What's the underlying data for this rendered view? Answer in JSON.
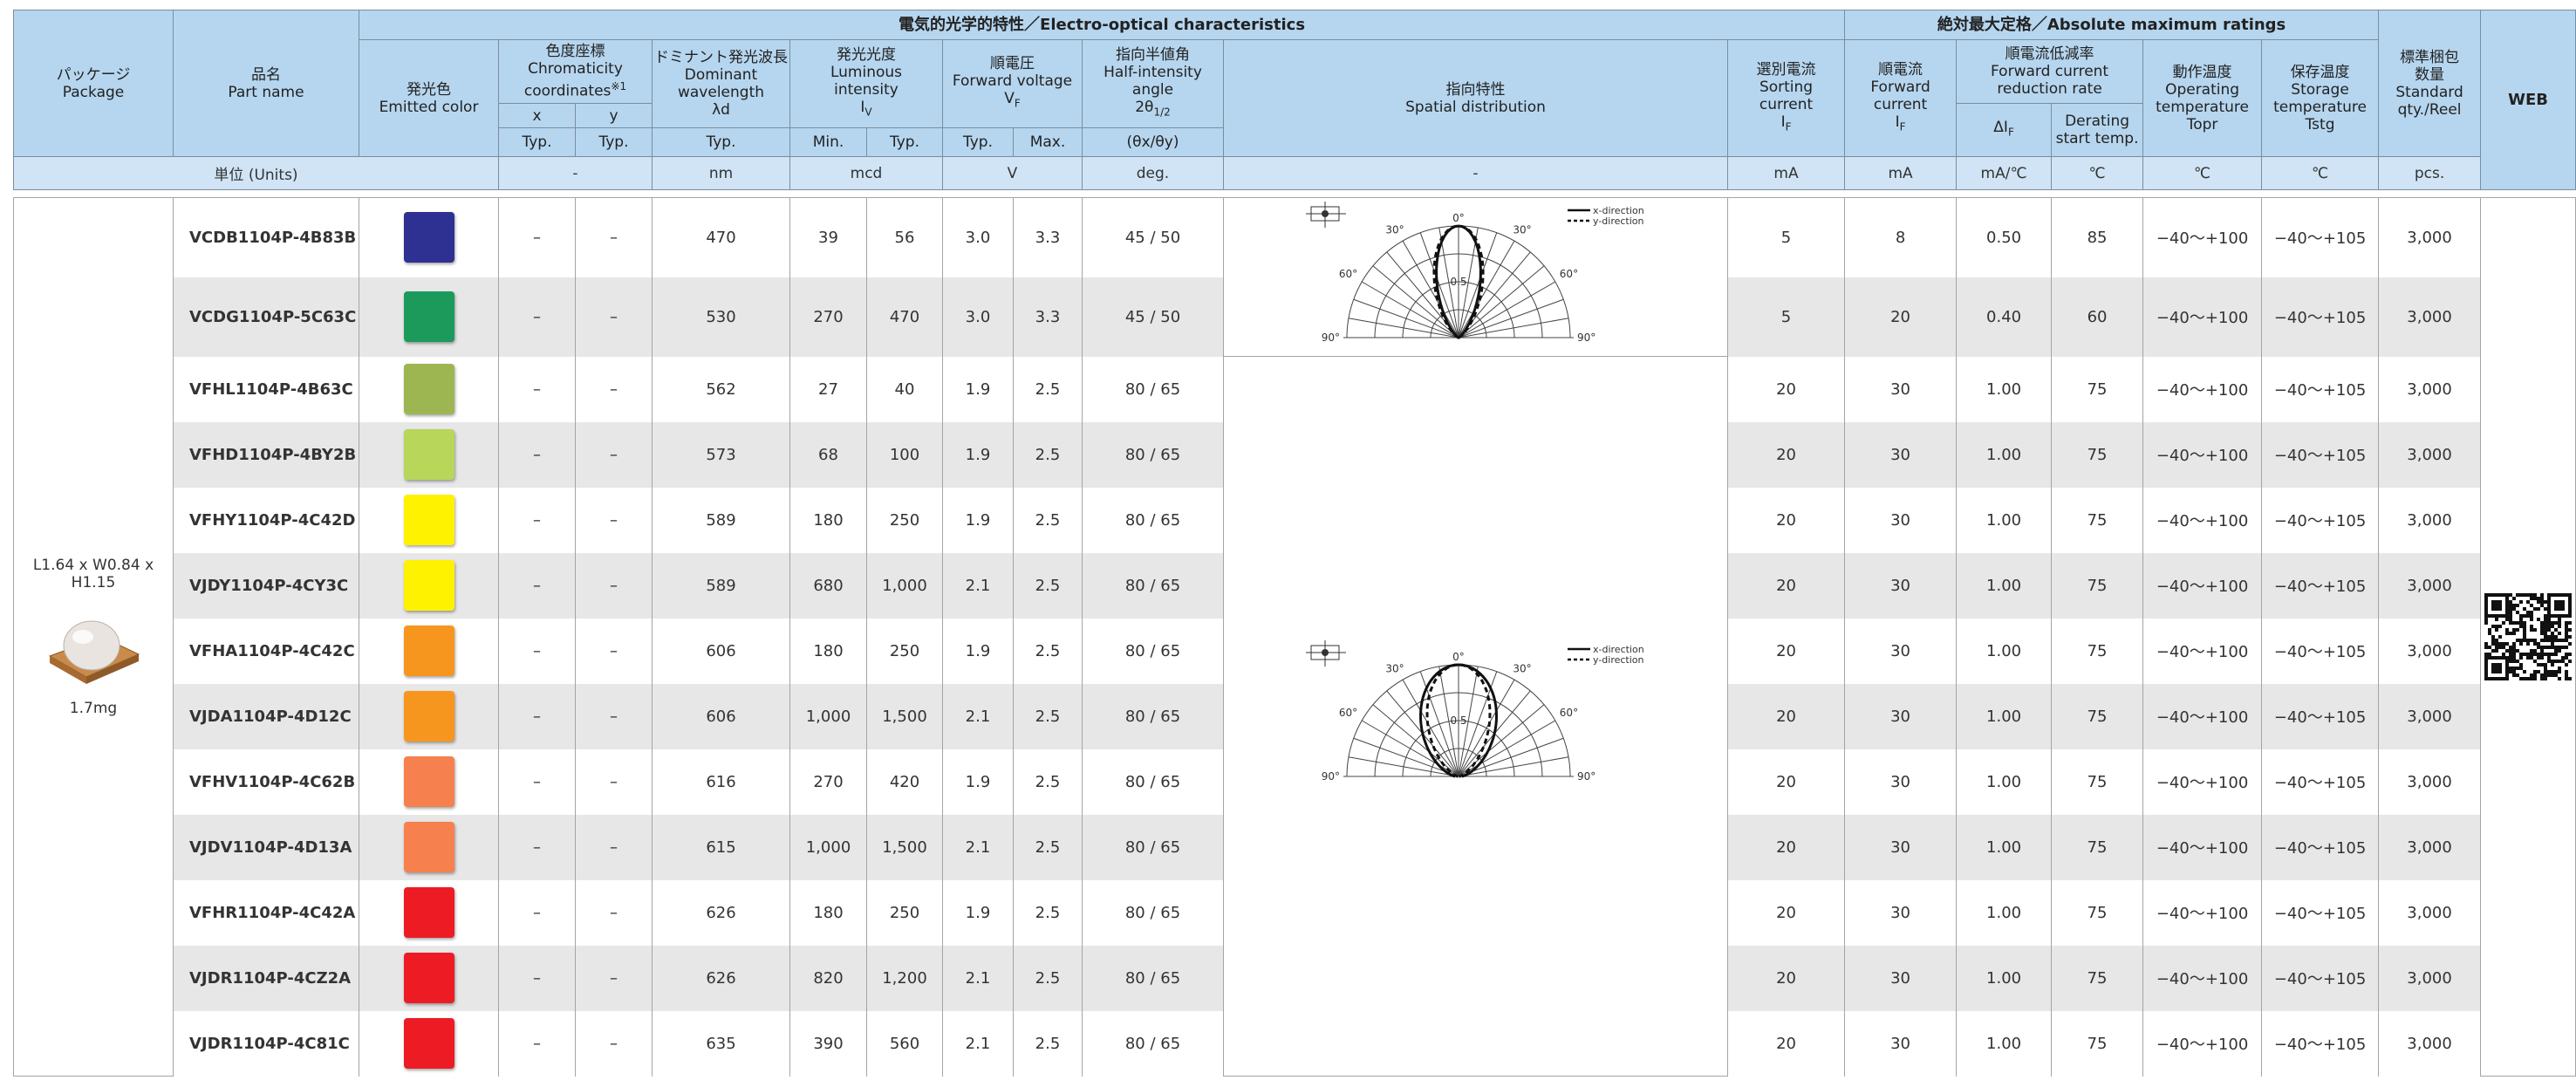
{
  "header": {
    "package": [
      "パッケージ",
      "Package"
    ],
    "part": [
      "品名",
      "Part name"
    ],
    "electro_optical": [
      "電気的光学的特性／Electro-optical characteristics"
    ],
    "absolute_max": [
      "絶対最大定格／Absolute maximum ratings"
    ],
    "quantity": [
      "標準梱包",
      "数量",
      "Standard",
      "qty./Reel"
    ],
    "web": [
      "WEB"
    ],
    "emitted_color": [
      "発光色",
      "Emitted color"
    ],
    "chromaticity": [
      "色度座標",
      "Chromaticity",
      [
        "coordinates",
        "※1"
      ]
    ],
    "chroma_x": [
      "x"
    ],
    "chroma_y": [
      "y"
    ],
    "chroma_x_typ": [
      "Typ."
    ],
    "chroma_y_typ": [
      "Typ."
    ],
    "wavelength": [
      "ドミナント発光波長",
      "Dominant",
      "wavelength",
      "λd"
    ],
    "wavelength_typ": [
      "Typ."
    ],
    "intensity": [
      "発光光度",
      "Luminous",
      "intensity",
      [
        "I",
        "V"
      ]
    ],
    "intensity_min": [
      "Min."
    ],
    "intensity_typ": [
      "Typ."
    ],
    "voltage": [
      "順電圧",
      "Forward voltage",
      [
        "V",
        "F"
      ]
    ],
    "voltage_typ": [
      "Typ."
    ],
    "voltage_max": [
      "Max."
    ],
    "half_angle": [
      "指向半値角",
      "Half-intensity",
      "angle",
      [
        "2θ",
        "1/2"
      ]
    ],
    "half_angle_unit": [
      "(θx/θy)"
    ],
    "spatial": [
      "指向特性",
      "Spatial distribution"
    ],
    "sorting_current": [
      "選別電流",
      "Sorting",
      "current",
      [
        "I",
        "F"
      ]
    ],
    "forward_current": [
      "順電流",
      "Forward",
      "current",
      [
        "I",
        "F"
      ]
    ],
    "reduction_rate": [
      "順電流低減率",
      "Forward current",
      "reduction rate"
    ],
    "reduction_symbol": [
      [
        "ΔI",
        "F"
      ]
    ],
    "derating_temp": [
      "Derating",
      "start temp."
    ],
    "operating_temp": [
      "動作温度",
      "Operating",
      "temperature",
      "Topr"
    ],
    "storage_temp": [
      "保存温度",
      "Storage",
      "temperature",
      "Tstg"
    ]
  },
  "units": [
    "単位 (Units)",
    "-",
    "nm",
    "mcd",
    "V",
    "deg.",
    "-",
    "mA",
    "mA",
    "mA/℃",
    "℃",
    "℃",
    "℃",
    "pcs."
  ],
  "package_info": {
    "dimensions": "L1.64 x W0.84 x H1.15",
    "weight": "1.7mg"
  },
  "diagram_labels": {
    "angle_0": "0°",
    "angle_30": "30°",
    "angle_60": "60°",
    "angle_90": "90°",
    "radius": "0.5",
    "legend_x": "x-direction",
    "legend_y": "y-direction"
  },
  "rows": [
    {
      "part": "VCDB1104P-4B83B",
      "color": "#2e3192",
      "cells": [
        "–",
        "–",
        "470",
        "39",
        "56",
        "3.0",
        "3.3",
        "45 / 50",
        "5",
        "8",
        "0.50",
        "85",
        "−40〜+100",
        "−40〜+105",
        "3,000"
      ]
    },
    {
      "part": "VCDG1104P-5C63C",
      "color": "#1b9a5c",
      "cells": [
        "–",
        "–",
        "530",
        "270",
        "470",
        "3.0",
        "3.3",
        "45 / 50",
        "5",
        "20",
        "0.40",
        "60",
        "−40〜+100",
        "−40〜+105",
        "3,000"
      ]
    },
    {
      "part": "VFHL1104P-4B63C",
      "color": "#9db652",
      "cells": [
        "–",
        "–",
        "562",
        "27",
        "40",
        "1.9",
        "2.5",
        "80 / 65",
        "20",
        "30",
        "1.00",
        "75",
        "−40〜+100",
        "−40〜+105",
        "3,000"
      ]
    },
    {
      "part": "VFHD1104P-4BY2B",
      "color": "#b7d65a",
      "cells": [
        "–",
        "–",
        "573",
        "68",
        "100",
        "1.9",
        "2.5",
        "80 / 65",
        "20",
        "30",
        "1.00",
        "75",
        "−40〜+100",
        "−40〜+105",
        "3,000"
      ]
    },
    {
      "part": "VFHY1104P-4C42D",
      "color": "#fff200",
      "cells": [
        "–",
        "–",
        "589",
        "180",
        "250",
        "1.9",
        "2.5",
        "80 / 65",
        "20",
        "30",
        "1.00",
        "75",
        "−40〜+100",
        "−40〜+105",
        "3,000"
      ]
    },
    {
      "part": "VJDY1104P-4CY3C",
      "color": "#fff200",
      "cells": [
        "–",
        "–",
        "589",
        "680",
        "1,000",
        "2.1",
        "2.5",
        "80 / 65",
        "20",
        "30",
        "1.00",
        "75",
        "−40〜+100",
        "−40〜+105",
        "3,000"
      ]
    },
    {
      "part": "VFHA1104P-4C42C",
      "color": "#f7961f",
      "cells": [
        "–",
        "–",
        "606",
        "180",
        "250",
        "1.9",
        "2.5",
        "80 / 65",
        "20",
        "30",
        "1.00",
        "75",
        "−40〜+100",
        "−40〜+105",
        "3,000"
      ]
    },
    {
      "part": "VJDA1104P-4D12C",
      "color": "#f7961f",
      "cells": [
        "–",
        "–",
        "606",
        "1,000",
        "1,500",
        "2.1",
        "2.5",
        "80 / 65",
        "20",
        "30",
        "1.00",
        "75",
        "−40〜+100",
        "−40〜+105",
        "3,000"
      ]
    },
    {
      "part": "VFHV1104P-4C62B",
      "color": "#f6814f",
      "cells": [
        "–",
        "–",
        "616",
        "270",
        "420",
        "1.9",
        "2.5",
        "80 / 65",
        "20",
        "30",
        "1.00",
        "75",
        "−40〜+100",
        "−40〜+105",
        "3,000"
      ]
    },
    {
      "part": "VJDV1104P-4D13A",
      "color": "#f6814f",
      "cells": [
        "–",
        "–",
        "615",
        "1,000",
        "1,500",
        "2.1",
        "2.5",
        "80 / 65",
        "20",
        "30",
        "1.00",
        "75",
        "−40〜+100",
        "−40〜+105",
        "3,000"
      ]
    },
    {
      "part": "VFHR1104P-4C42A",
      "color": "#ed1c24",
      "cells": [
        "–",
        "–",
        "626",
        "180",
        "250",
        "1.9",
        "2.5",
        "80 / 65",
        "20",
        "30",
        "1.00",
        "75",
        "−40〜+100",
        "−40〜+105",
        "3,000"
      ]
    },
    {
      "part": "VJDR1104P-4CZ2A",
      "color": "#ed1c24",
      "cells": [
        "–",
        "–",
        "626",
        "820",
        "1,200",
        "2.1",
        "2.5",
        "80 / 65",
        "20",
        "30",
        "1.00",
        "75",
        "−40〜+100",
        "−40〜+105",
        "3,000"
      ]
    },
    {
      "part": "VJDR1104P-4C81C",
      "color": "#ed1c24",
      "cells": [
        "–",
        "–",
        "635",
        "390",
        "560",
        "2.1",
        "2.5",
        "80 / 65",
        "20",
        "30",
        "1.00",
        "75",
        "−40〜+100",
        "−40〜+105",
        "3,000"
      ]
    }
  ]
}
